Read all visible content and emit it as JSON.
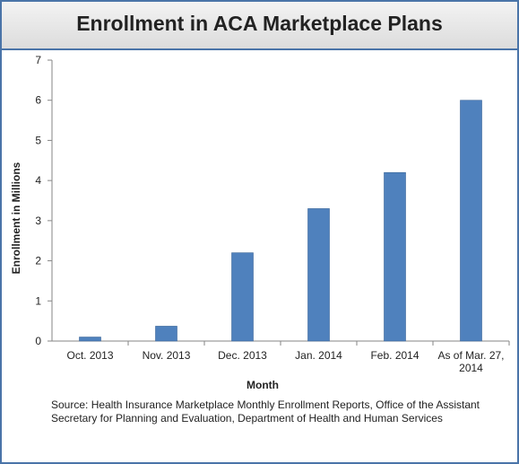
{
  "chart_data": {
    "type": "bar",
    "title": "Enrollment in ACA Marketplace Plans",
    "xlabel": "Month",
    "ylabel": "Enrollment in Millions",
    "categories": [
      "Oct. 2013",
      "Nov. 2013",
      "Dec. 2013",
      "Jan. 2014",
      "Feb. 2014",
      "As of Mar. 27, 2014"
    ],
    "values": [
      0.1,
      0.37,
      2.2,
      3.3,
      4.2,
      6.0
    ],
    "ylim": [
      0,
      7
    ],
    "yticks": [
      0,
      1,
      2,
      3,
      4,
      5,
      6,
      7
    ],
    "grid": false,
    "bar_color": "#4f81bd",
    "source": "Source:  Health Insurance Marketplace Monthly Enrollment Reports, Office of the Assistant Secretary for Planning and Evaluation, Department of Health and Human Services"
  }
}
